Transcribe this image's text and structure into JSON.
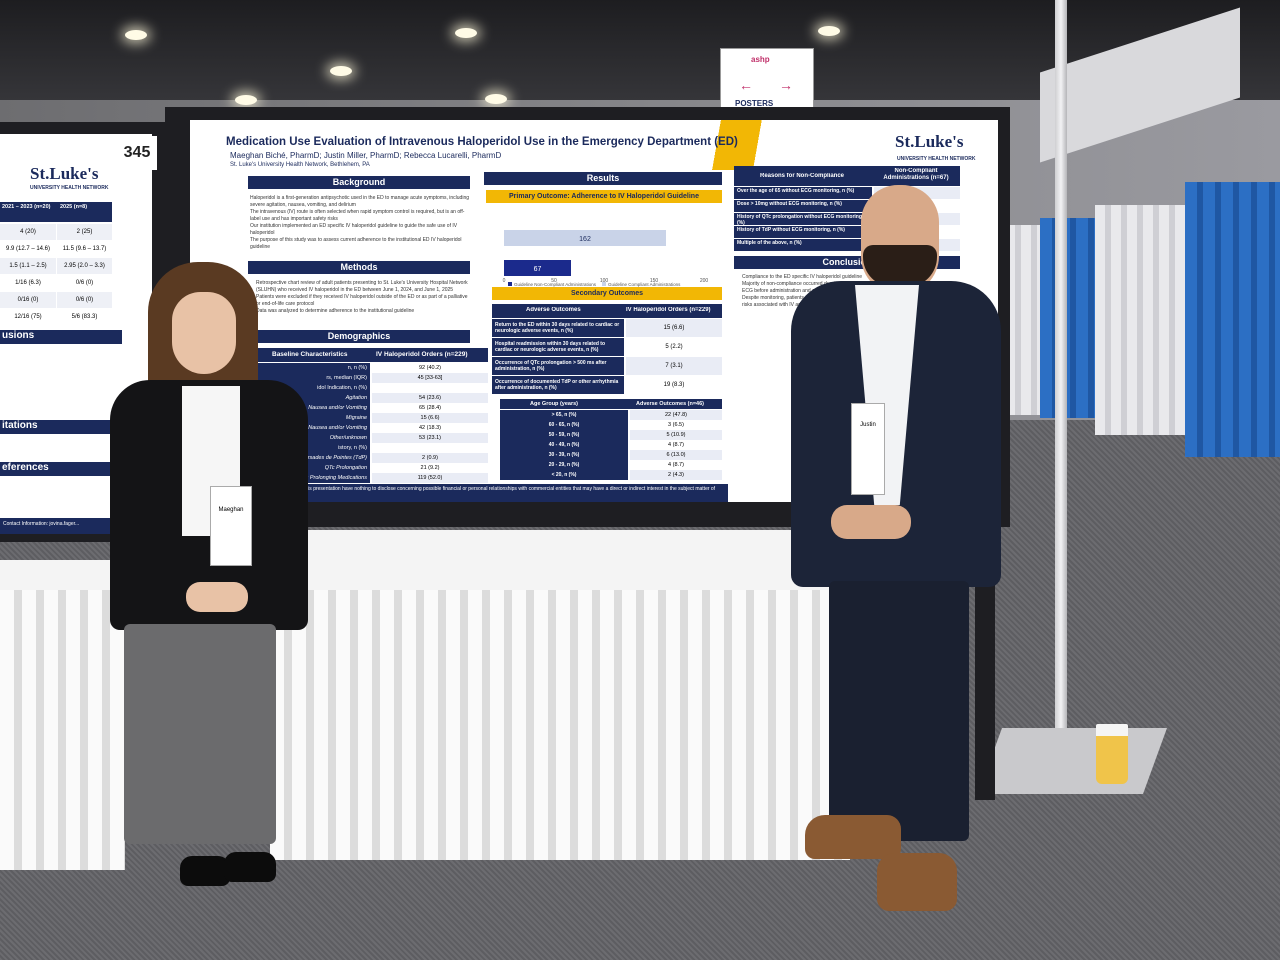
{
  "scene": {
    "booth_number": "345",
    "sign_text": "POSTERS",
    "sign_brand": "ashp"
  },
  "poster": {
    "title": "Medication Use Evaluation of Intravenous Haloperidol Use in the Emergency Department (ED)",
    "authors": "Maeghan Biché, PharmD; Justin Miller, PharmD; Rebecca Lucarelli, PharmD",
    "affiliation": "St. Luke's University Health Network, Bethlehem, PA",
    "logo_main": "St.Luke's",
    "logo_sub": "UNIVERSITY HEALTH NETWORK",
    "sections": {
      "background": "Background",
      "methods": "Methods",
      "demographics": "Demographics",
      "results": "Results",
      "primary": "Primary Outcome: Adherence to IV Haloperidol Guideline",
      "secondary": "Secondary Outcomes",
      "conclusion": "Conclusion"
    },
    "background_text": "Haloperidol is a first-generation antipsychotic used in the ED to manage acute symptoms, including severe agitation, nausea, vomiting, and delirium\nThe intravenous (IV) route is often selected when rapid symptom control is required, but is an off-label use and has important safety risks\nOur institution implemented an ED specific IV haloperidol guideline to guide the safe use of IV haloperidol\nThe purpose of this study was to assess current adherence to the institutional ED IV haloperidol guideline",
    "methods_text": "Retrospective chart review of adult patients presenting to St. Luke's University Hospital Network (SLUHN) who received IV haloperidol in the ED between June 1, 2024, and June 1, 2025\nPatients were excluded if they received IV haloperidol outside of the ED or as part of a palliative or end-of-life care protocol\nData was analyzed to determine adherence to the institutional guideline",
    "demographics": {
      "headers": [
        "Baseline Characteristics",
        "IV Haloperidol Orders (n=229)"
      ],
      "rows": [
        [
          "n, n (%)",
          "92 (40.2)"
        ],
        [
          "rs, median (IQR)",
          "45 [33-63]"
        ],
        [
          "idol Indication, n (%)",
          ""
        ],
        [
          "Agitation",
          "54 (23.6)"
        ],
        [
          "Nausea and/or Vomiting",
          "65 (28.4)"
        ],
        [
          "Migraine",
          "15 (6.6)"
        ],
        [
          "ain with/without Nausea and/or Vomiting",
          "42 (18.3)"
        ],
        [
          "Other/unknown",
          "53 (23.1)"
        ],
        [
          "istory, n (%)",
          ""
        ],
        [
          "Torsades de Pointes (TdP)",
          "2 (0.9)"
        ],
        [
          "QTc Prolongation",
          "21 (9.2)"
        ],
        [
          "Tc Prolonging Medications",
          "119 (52.0)"
        ]
      ]
    },
    "primary_chart_data": {
      "type": "bar",
      "categories": [
        "Guideline Non-Compliant Administrations",
        "Guideline Compliant Administrations"
      ],
      "values": [
        67,
        162
      ],
      "xlim": [
        0,
        200
      ],
      "ticks": [
        "0",
        "50",
        "100",
        "150",
        "200"
      ],
      "colors": [
        "#1b2a8c",
        "#c9d3e8"
      ]
    },
    "secondary": {
      "headers": [
        "Adverse Outcomes",
        "IV Haloperidol Orders (n=229)"
      ],
      "rows": [
        [
          "Return to the ED within 30 days related to cardiac or neurologic adverse events, n (%)",
          "15 (6.6)"
        ],
        [
          "Hospital readmission within 30 days related to cardiac or neurologic adverse events, n (%)",
          "5 (2.2)"
        ],
        [
          "Occurrence of QTc prolongation > 500 ms after administration, n (%)",
          "7 (3.1)"
        ],
        [
          "Occurrence of documented TdP or other arrhythmia after administration, n (%)",
          "19 (8.3)"
        ]
      ]
    },
    "age": {
      "headers": [
        "Age Group (years)",
        "Adverse Outcomes (n=46)"
      ],
      "rows": [
        [
          "> 65, n (%)",
          "22 (47.8)"
        ],
        [
          "60 - 65, n (%)",
          "3 (6.5)"
        ],
        [
          "50 - 59, n (%)",
          "5 (10.9)"
        ],
        [
          "40 - 49, n (%)",
          "4 (8.7)"
        ],
        [
          "30 - 39, n (%)",
          "6 (13.0)"
        ],
        [
          "20 - 29, n (%)",
          "4 (8.7)"
        ],
        [
          "< 20, n (%)",
          "2 (4.3)"
        ]
      ]
    },
    "noncompliance": {
      "headers": [
        "Reasons for Non-Compliance",
        "Non-Compliant Administrations (n=67)"
      ],
      "rows": [
        "Over the age of 65 without ECG monitoring, n (%)",
        "Dose > 10mg without ECG monitoring, n (%)",
        "History of QTc prolongation without ECG monitoring, n (%)",
        "History of TdP without ECG monitoring, n (%)",
        "Multiple of the above, n (%)"
      ]
    },
    "conclusion_text": "Compliance to the ED specific IV haloperidol guideline\nMajority of non-compliance occurred due to patients\nECG before administration and an ECG before discharge\nDespite monitoring, patients did still experience\nrisks associated with IV administration",
    "disclosure": "Disclosure: Authors of this presentation have nothing to disclose concerning possible financial or personal relationships with commercial entities that may have a direct or indirect interest in the subject matter of this presentation."
  },
  "left_poster": {
    "logo_main": "St.Luke's",
    "logo_sub": "UNIVERSITY HEALTH NETWORK",
    "col_headers": [
      "2021 – 2023 (n=20)",
      "2025 (n=8)"
    ],
    "rows": [
      [
        "4 (20)",
        "2 (25)"
      ],
      [
        "9.9 (12.7 – 14.6)",
        "11.5 (9.6 – 13.7)"
      ],
      [
        "1.5 (1.1 – 2.5)",
        "2.95 (2.0 – 3.3)"
      ],
      [
        "1/16 (6.3)",
        "0/6 (0)"
      ],
      [
        "0/16 (0)",
        "0/6 (0)"
      ],
      [
        "12/16 (75)",
        "5/6 (83.3)"
      ]
    ],
    "sections": [
      "usions",
      "itations",
      "eferences"
    ],
    "contact": "Contact Information: jovina.fager..."
  },
  "people": {
    "left_badge_name": "Maeghan",
    "right_badge_name": "Justin"
  }
}
